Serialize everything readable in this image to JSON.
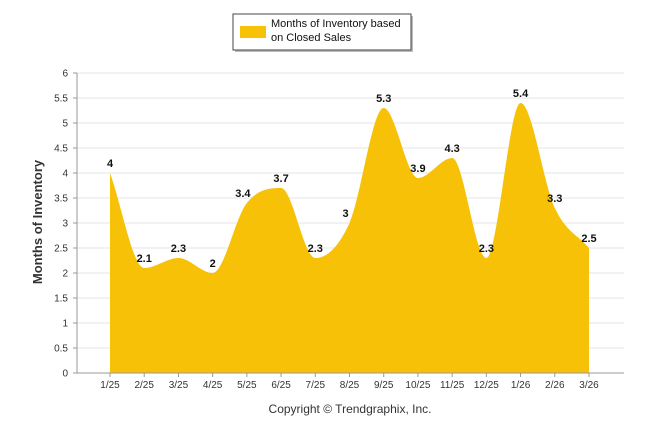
{
  "colors": {
    "series": "#F7C107",
    "grid": "#e6e6e6",
    "axis": "#999999"
  },
  "chart_data": {
    "type": "area",
    "legend": {
      "label_line1": "Months of Inventory based",
      "label_line2": "on Closed Sales",
      "position": "top-center"
    },
    "ylabel": "Months of Inventory",
    "xlabel": "",
    "ylim": [
      0,
      6
    ],
    "yticks": [
      "0",
      "0.5",
      "1",
      "1.5",
      "2",
      "2.5",
      "3",
      "3.5",
      "4",
      "4.5",
      "5",
      "5.5",
      "6"
    ],
    "categories": [
      "1/25",
      "2/25",
      "3/25",
      "4/25",
      "5/25",
      "6/25",
      "7/25",
      "8/25",
      "9/25",
      "10/25",
      "11/25",
      "12/25",
      "1/26",
      "2/26",
      "3/26"
    ],
    "series": [
      {
        "name": "Months of Inventory based on Closed Sales",
        "values": [
          4,
          2.1,
          2.3,
          2,
          3.4,
          3.7,
          2.3,
          3,
          5.3,
          3.9,
          4.3,
          2.3,
          5.4,
          3.3,
          2.5
        ]
      }
    ],
    "data_labels": [
      "4",
      "2.1",
      "2.3",
      "2",
      "3.4",
      "3.7",
      "2.3",
      "3",
      "5.3",
      "3.9",
      "4.3",
      "2.3",
      "5.4",
      "3.3",
      "2.5"
    ],
    "footer": "Copyright © Trendgraphix, Inc."
  }
}
